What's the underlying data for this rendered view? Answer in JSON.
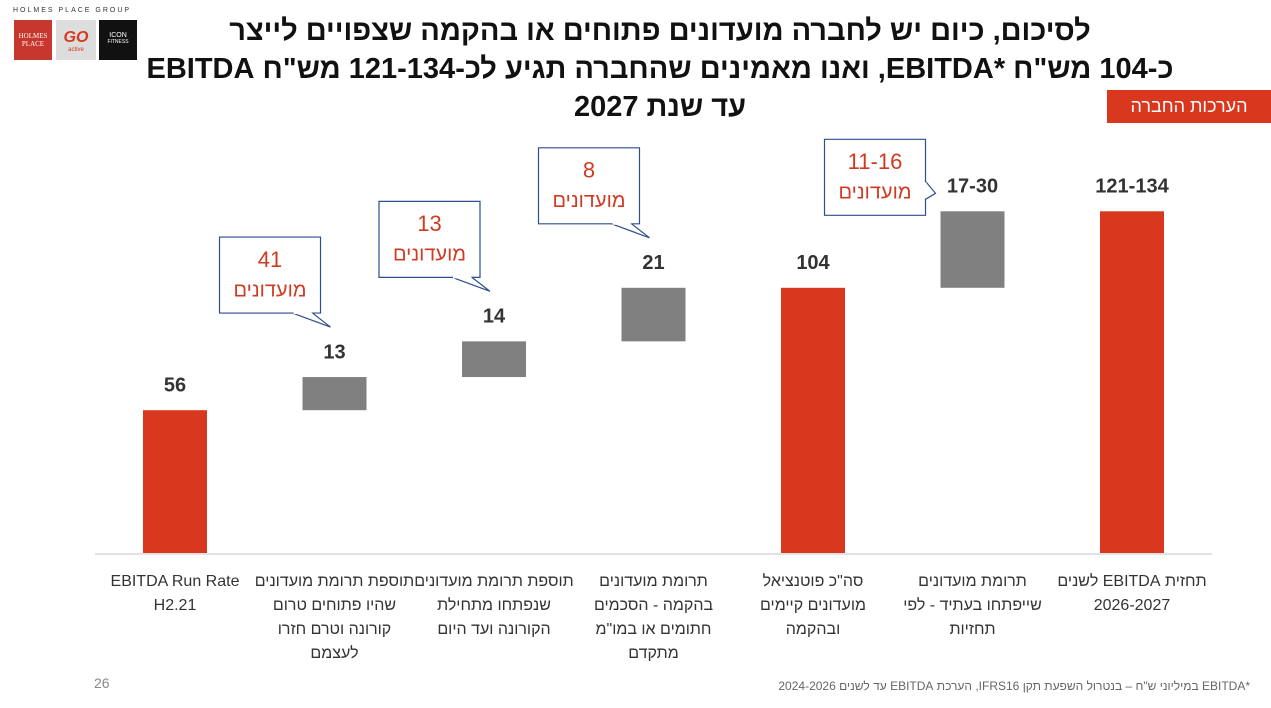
{
  "header": {
    "group": "HOLMES PLACE GROUP",
    "logos": [
      "HOLMES PLACE",
      "GO",
      "active",
      "ICON",
      "FITNESS"
    ],
    "title_lines": [
      "לסיכום, כיום יש לחברה מועדונים פתוחים או בהקמה שצפויים לייצר",
      "כ-104 מש\"ח *EBITDA, ואנו מאמינים שהחברה תגיע לכ-121-134 מש\"ח EBITDA",
      "עד שנת 2027"
    ],
    "badge": "הערכות החברה"
  },
  "chart_data": {
    "type": "waterfall",
    "categories": [
      "EBITDA Run Rate H2.21",
      "תוספת תרומת מועדונים שהיו פתוחים טרום קורונה וטרם חזרו לעצמם",
      "תוספת תרומת מועדונים שנפתחו מתחילת הקורונה ועד היום",
      "תרומת מועדונים בהקמה - הסכמים חתומים או במו\"מ מתקדם",
      "סה\"כ פוטנציאל מועדונים קיימים ובהקמה",
      "תרומת מועדונים שייפתחו בעתיד - לפי תחזיות",
      "תחזית EBITDA לשנים 2026-2027"
    ],
    "values": [
      56,
      13,
      14,
      21,
      104,
      [
        17,
        30
      ],
      [
        121,
        134
      ]
    ],
    "value_labels": [
      "56",
      "13",
      "14",
      "21",
      "104",
      "17-30",
      "121-134"
    ],
    "measure": [
      "total",
      "relative",
      "relative",
      "relative",
      "total",
      "relative",
      "total"
    ],
    "colors": {
      "total": "#d9381e",
      "relative": "#808080"
    },
    "callouts": [
      {
        "bar": 1,
        "count": 41,
        "unit": "מועדונים"
      },
      {
        "bar": 2,
        "count": 13,
        "unit": "מועדונים"
      },
      {
        "bar": 3,
        "count": 8,
        "unit": "מועדונים"
      },
      {
        "bar": 5,
        "count": "11-16",
        "unit": "מועדונים"
      }
    ]
  },
  "footer": {
    "page": "26",
    "note": "*EBITDA במיליוני ש\"ח – בנטרול השפעת תקן IFRS16, הערכת EBITDA עד לשנים 2024-2026"
  }
}
